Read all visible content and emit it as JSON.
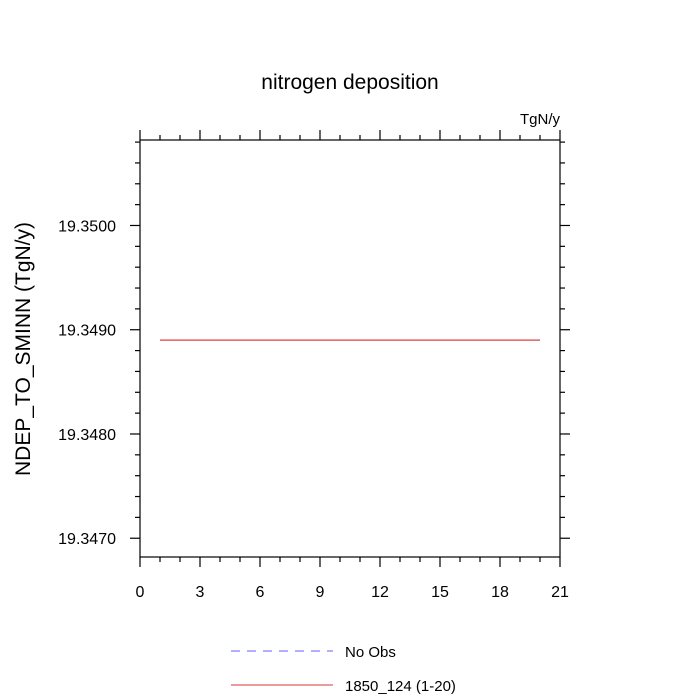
{
  "chart_data": {
    "type": "line",
    "title": "nitrogen deposition",
    "units_label": "TgN/y",
    "ylabel": "NDEP_TO_SMINN  (TgN/y)",
    "xlabel": "",
    "xlim": [
      0,
      21
    ],
    "ylim": [
      19.34682,
      19.35082
    ],
    "x_ticks": [
      0,
      3,
      6,
      9,
      12,
      15,
      18,
      21
    ],
    "x_tick_labels": [
      "0",
      "3",
      "6",
      "9",
      "12",
      "15",
      "18",
      "21"
    ],
    "y_ticks": [
      19.347,
      19.348,
      19.349,
      19.35
    ],
    "y_tick_labels": [
      "19.3470",
      "19.3480",
      "19.3490",
      "19.3500"
    ],
    "grid": false,
    "series": [
      {
        "name": "No Obs",
        "color": "#8080ff",
        "dash": "dashed",
        "x": [],
        "y": []
      },
      {
        "name": "1850_124 (1-20)",
        "color": "#e06060",
        "dash": "solid",
        "x": [
          1,
          20
        ],
        "y": [
          19.3489,
          19.3489
        ]
      }
    ],
    "legend": [
      {
        "label": "No Obs",
        "color": "#8080ff",
        "dash": "dashed"
      },
      {
        "label": "1850_124 (1-20)",
        "color": "#e06060",
        "dash": "solid"
      }
    ],
    "legend_placement": "bottom"
  }
}
